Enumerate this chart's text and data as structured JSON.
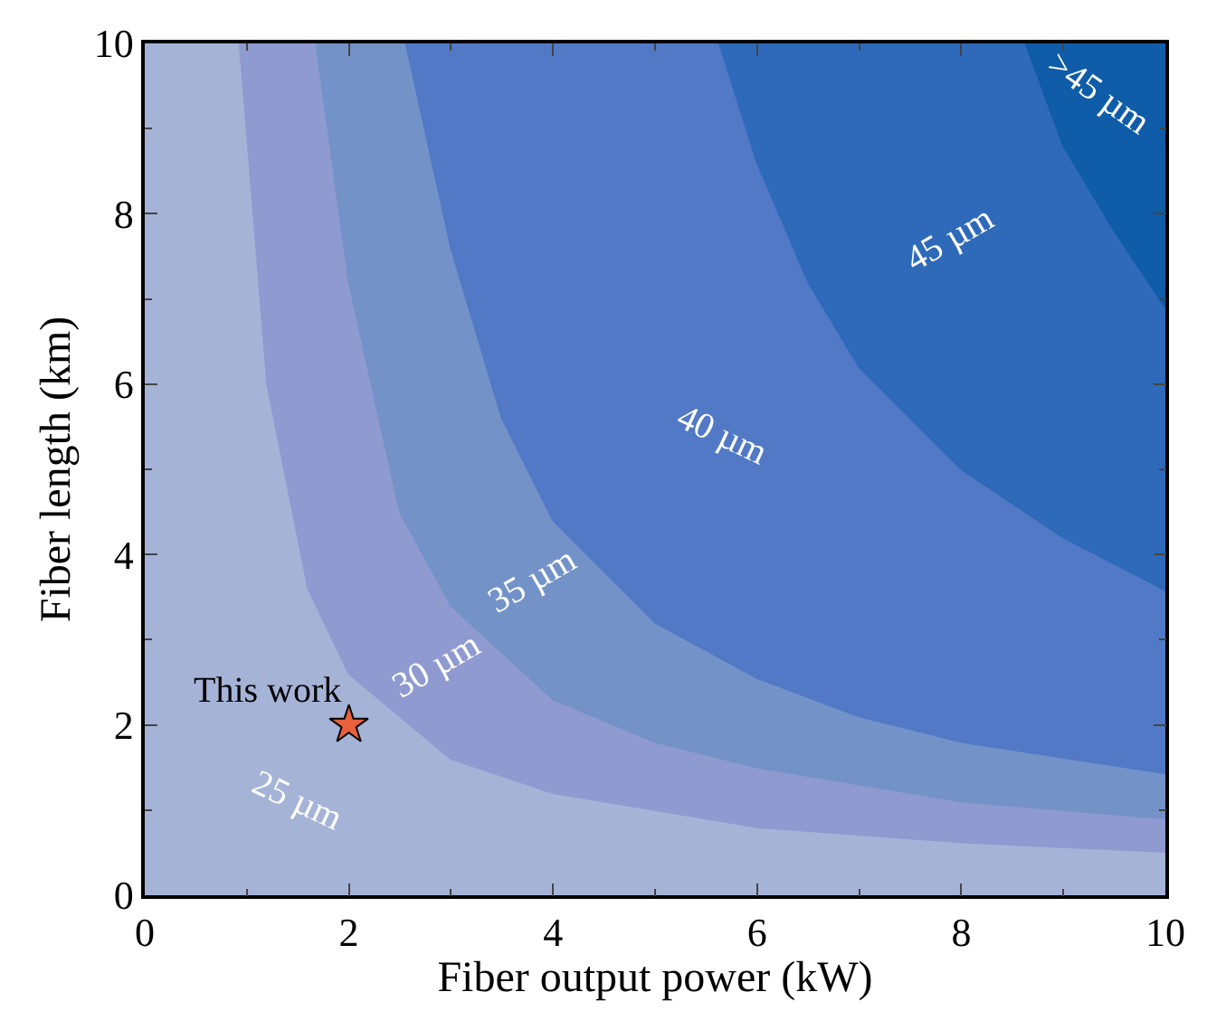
{
  "chart_data": {
    "type": "area",
    "xlabel": "Fiber output power (kW)",
    "ylabel": "Fiber length (km)",
    "xlim": [
      0,
      10
    ],
    "ylim": [
      0,
      10
    ],
    "xticks": [
      0,
      2,
      4,
      6,
      8,
      10
    ],
    "yticks": [
      0,
      2,
      4,
      6,
      8,
      10
    ],
    "series": [
      {
        "color": "#a5b3d7",
        "x": [
          0,
          10,
          10,
          0
        ],
        "values": [
          0,
          0,
          10,
          10
        ]
      },
      {
        "color": "#8f9ad0",
        "x": [
          0.93,
          1.2,
          1.6,
          2,
          3,
          4,
          6,
          8,
          10,
          10
        ],
        "values": [
          10,
          6,
          3.6,
          2.6,
          1.6,
          1.2,
          0.8,
          0.62,
          0.51,
          10
        ]
      },
      {
        "color": "#7392c8",
        "x": [
          1.68,
          2,
          2.5,
          3,
          4,
          5,
          6,
          8,
          10,
          10
        ],
        "values": [
          10,
          7.2,
          4.5,
          3.4,
          2.3,
          1.8,
          1.5,
          1.1,
          0.9,
          10
        ]
      },
      {
        "color": "#5179c6",
        "x": [
          2.56,
          3,
          3.5,
          4,
          5,
          6,
          7,
          8,
          10,
          10
        ],
        "values": [
          10,
          7.6,
          5.6,
          4.4,
          3.2,
          2.55,
          2.1,
          1.8,
          1.43,
          10
        ]
      },
      {
        "color": "#2e6ab9",
        "x": [
          5.63,
          6,
          6.5,
          7,
          8,
          9,
          10,
          10
        ],
        "values": [
          10,
          8.6,
          7.2,
          6.2,
          5,
          4.2,
          3.58,
          10
        ]
      },
      {
        "color": "#0f5ca8",
        "x": [
          8.63,
          9,
          9.5,
          10,
          10
        ],
        "values": [
          10,
          8.8,
          7.8,
          6.9,
          10
        ]
      },
      {
        "type": "scatter",
        "marker": "star",
        "color": "#e8603c",
        "x": [
          2
        ],
        "values": [
          2
        ]
      }
    ],
    "annotations": [
      "25 µm",
      "30 µm",
      "35 µm",
      "40 µm",
      "45 µm",
      ">45 µm",
      {
        "text": "This work",
        "x": 2,
        "y": 2
      }
    ]
  }
}
